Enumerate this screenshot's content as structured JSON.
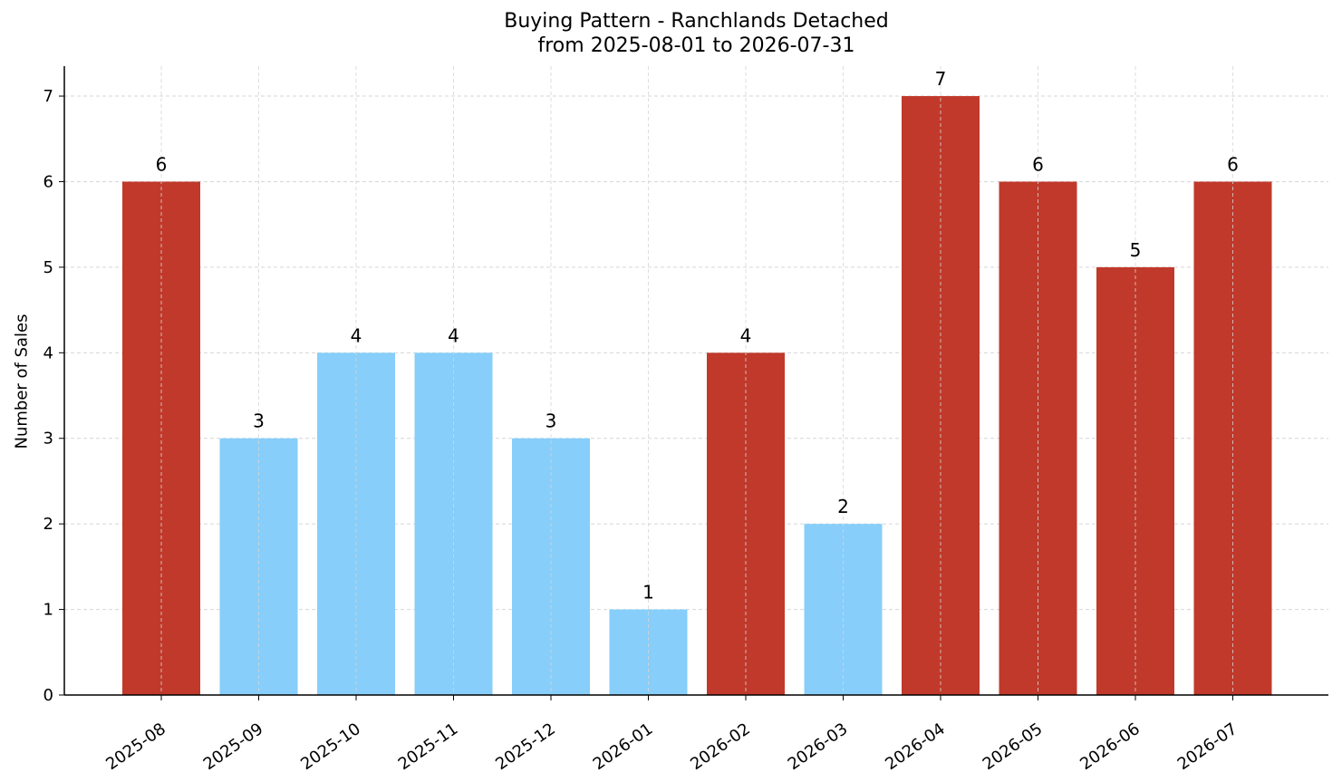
{
  "chart_data": {
    "type": "bar",
    "title": "Buying Pattern - Ranchlands Detached",
    "subtitle": "from 2025-08-01 to 2026-07-31",
    "xlabel": "",
    "ylabel": "Number of Sales",
    "categories": [
      "2025-08",
      "2025-09",
      "2025-10",
      "2025-11",
      "2025-12",
      "2026-01",
      "2026-02",
      "2026-03",
      "2026-04",
      "2026-05",
      "2026-06",
      "2026-07"
    ],
    "values": [
      6,
      3,
      4,
      4,
      3,
      1,
      4,
      2,
      7,
      6,
      5,
      6
    ],
    "highlighted": [
      true,
      false,
      false,
      false,
      false,
      false,
      true,
      false,
      true,
      true,
      true,
      true
    ],
    "ylim": [
      0,
      7.35
    ],
    "yticks": [
      0,
      1,
      2,
      3,
      4,
      5,
      6,
      7
    ],
    "grid": true,
    "colors": {
      "highlight": "#c0392b",
      "normal": "#87cefa",
      "grid": "#d6d6d6",
      "axis": "#000000",
      "text": "#000000"
    }
  }
}
